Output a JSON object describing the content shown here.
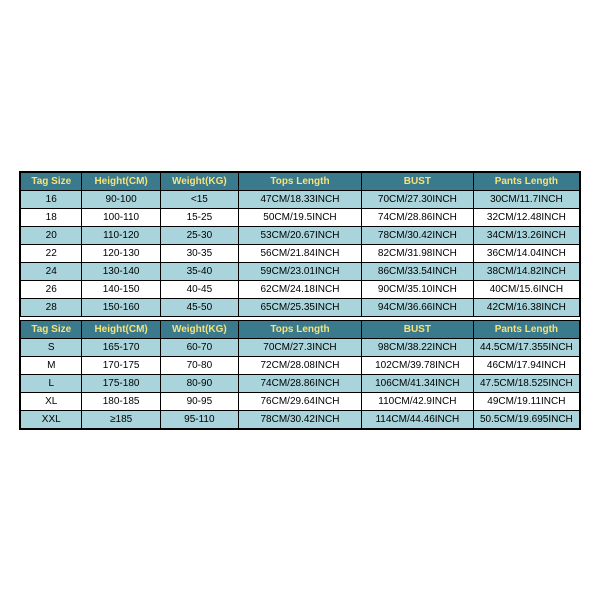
{
  "tables": [
    {
      "columns": [
        "Tag Size",
        "Height(CM)",
        "Weight(KG)",
        "Tops Length",
        "BUST",
        "Pants Length"
      ],
      "header_bg": "#3b7a8c",
      "header_color": "#f5e37b",
      "stripe_a": "#a9d4db",
      "stripe_b": "#ffffff",
      "border_color": "#000000",
      "rows": [
        [
          "16",
          "90-100",
          "<15",
          "47CM/18.33INCH",
          "70CM/27.30INCH",
          "30CM/11.7INCH"
        ],
        [
          "18",
          "100-110",
          "15-25",
          "50CM/19.5INCH",
          "74CM/28.86INCH",
          "32CM/12.48INCH"
        ],
        [
          "20",
          "110-120",
          "25-30",
          "53CM/20.67INCH",
          "78CM/30.42INCH",
          "34CM/13.26INCH"
        ],
        [
          "22",
          "120-130",
          "30-35",
          "56CM/21.84INCH",
          "82CM/31.98INCH",
          "36CM/14.04INCH"
        ],
        [
          "24",
          "130-140",
          "35-40",
          "59CM/23.01INCH",
          "86CM/33.54INCH",
          "38CM/14.82INCH"
        ],
        [
          "26",
          "140-150",
          "40-45",
          "62CM/24.18INCH",
          "90CM/35.10INCH",
          "40CM/15.6INCH"
        ],
        [
          "28",
          "150-160",
          "45-50",
          "65CM/25.35INCH",
          "94CM/36.66INCH",
          "42CM/16.38INCH"
        ]
      ]
    },
    {
      "columns": [
        "Tag Size",
        "Height(CM)",
        "Weight(KG)",
        "Tops Length",
        "BUST",
        "Pants Length"
      ],
      "header_bg": "#3b7a8c",
      "header_color": "#f5e37b",
      "stripe_a": "#a9d4db",
      "stripe_b": "#ffffff",
      "border_color": "#000000",
      "rows": [
        [
          "S",
          "165-170",
          "60-70",
          "70CM/27.3INCH",
          "98CM/38.22INCH",
          "44.5CM/17.355INCH"
        ],
        [
          "M",
          "170-175",
          "70-80",
          "72CM/28.08INCH",
          "102CM/39.78INCH",
          "46CM/17.94INCH"
        ],
        [
          "L",
          "175-180",
          "80-90",
          "74CM/28.86INCH",
          "106CM/41.34INCH",
          "47.5CM/18.525INCH"
        ],
        [
          "XL",
          "180-185",
          "90-95",
          "76CM/29.64INCH",
          "110CM/42.9INCH",
          "49CM/19.11INCH"
        ],
        [
          "XXL",
          "≥185",
          "95-110",
          "78CM/30.42INCH",
          "114CM/44.46INCH",
          "50.5CM/19.695INCH"
        ]
      ]
    }
  ]
}
